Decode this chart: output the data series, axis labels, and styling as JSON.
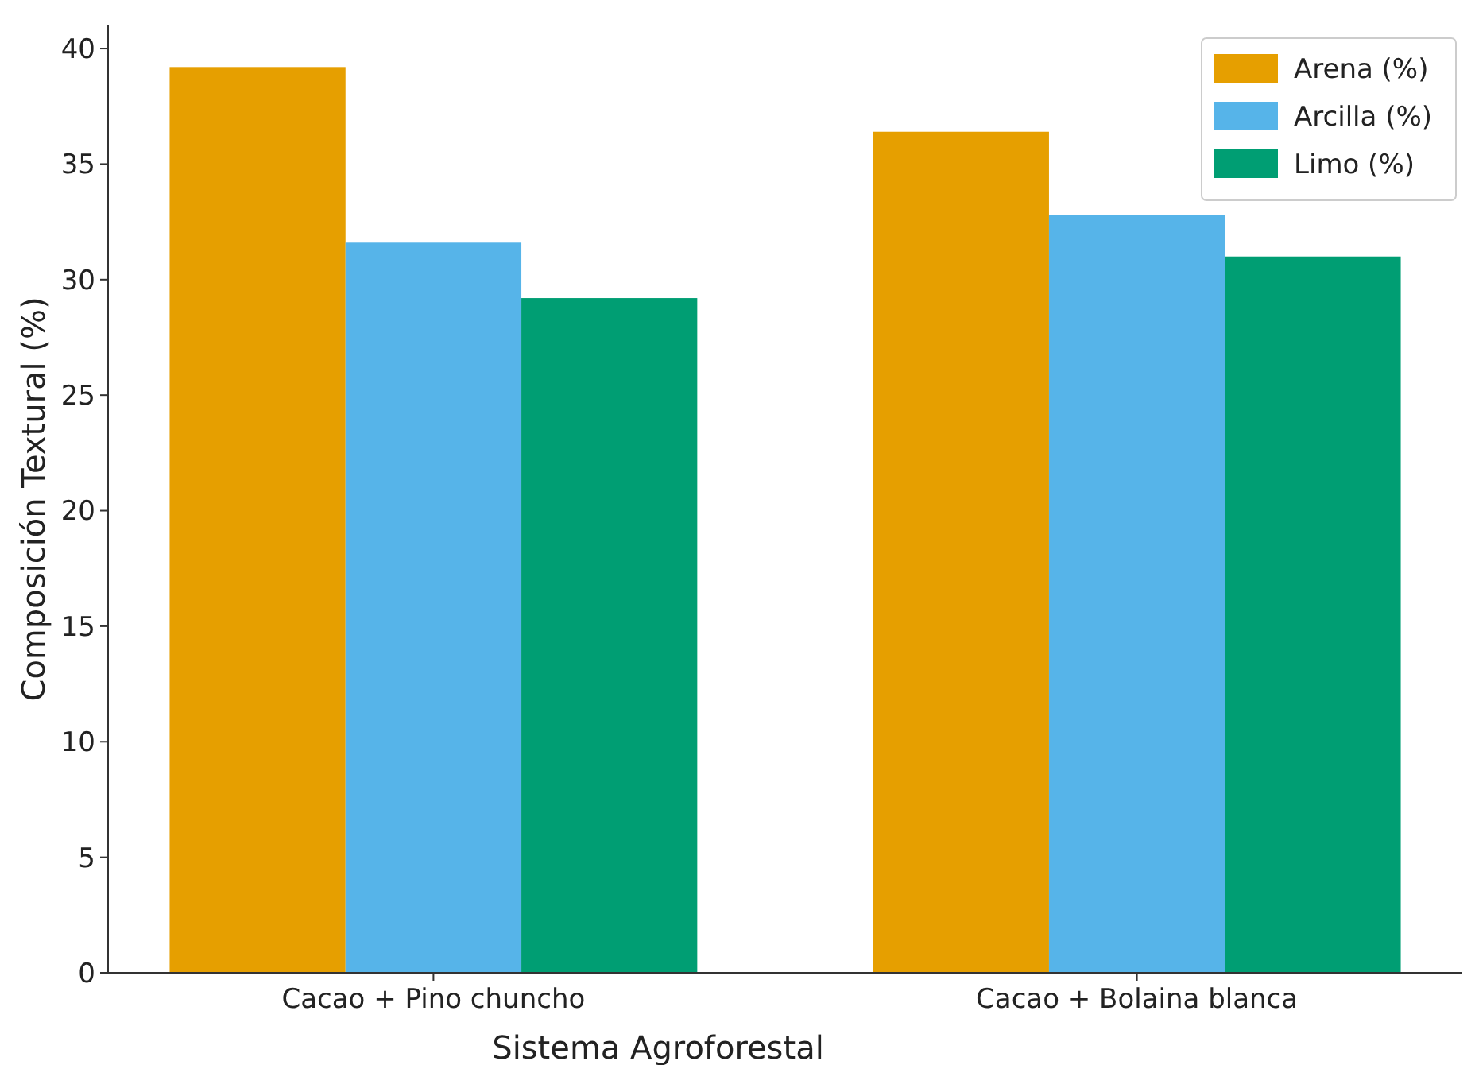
{
  "chart_data": {
    "type": "bar",
    "xlabel": "Sistema Agroforestal",
    "ylabel": "Composición Textural (%)",
    "categories": [
      "Cacao + Pino chuncho",
      "Cacao + Bolaina blanca"
    ],
    "series": [
      {
        "name": "Arena (%)",
        "color": "#e69f00",
        "values": [
          39.2,
          36.4
        ]
      },
      {
        "name": "Arcilla (%)",
        "color": "#56b4e9",
        "values": [
          31.6,
          32.8
        ]
      },
      {
        "name": "Limo (%)",
        "color": "#009e73",
        "values": [
          29.2,
          31.0
        ]
      }
    ],
    "ylim": [
      0,
      41
    ],
    "yticks": [
      0,
      5,
      10,
      15,
      20,
      25,
      30,
      35,
      40
    ],
    "legend": "top right",
    "grid": false
  }
}
